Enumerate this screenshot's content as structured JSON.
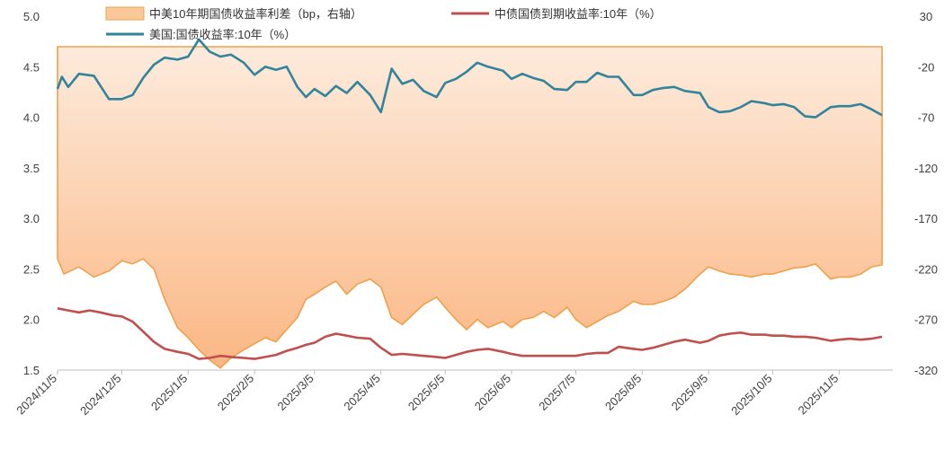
{
  "chart_data": {
    "type": "line",
    "title": "",
    "xlabel": "",
    "ylabel": "",
    "y_left": {
      "min": 1.5,
      "max": 5.0,
      "ticks": [
        "5.0",
        "4.5",
        "4.0",
        "3.5",
        "3.0",
        "2.5",
        "2.0",
        "1.5"
      ]
    },
    "y_right": {
      "min": -320,
      "max": 30,
      "ticks": [
        "30",
        "-20",
        "-70",
        "-120",
        "-170",
        "-220",
        "-270",
        "-320"
      ]
    },
    "x_ticks": [
      "2024/11/5",
      "2024/12/5",
      "2025/1/5",
      "2025/2/5",
      "2025/3/5",
      "2025/4/5",
      "2025/5/5",
      "2025/6/5",
      "2025/7/5",
      "2025/8/5",
      "2025/9/5",
      "2025/10/5",
      "2025/11/5"
    ],
    "legend_position": "top",
    "colors": {
      "spread_fill_top": "#fde8d6",
      "spread_fill_bottom": "#fbb985",
      "spread_line": "#f0a04b",
      "china": "#c0504d",
      "us": "#31849b",
      "axis": "#bfbfbf"
    },
    "series": [
      {
        "name": "中美10年期国债收益率利差（bp，右轴）",
        "axis": "right",
        "kind": "area",
        "points": [
          [
            "2024/11/5",
            -210
          ],
          [
            "2024/11/8",
            -225
          ],
          [
            "2024/11/15",
            -218
          ],
          [
            "2024/11/22",
            -228
          ],
          [
            "2024/11/29",
            -222
          ],
          [
            "2024/12/5",
            -212
          ],
          [
            "2024/12/10",
            -215
          ],
          [
            "2024/12/15",
            -210
          ],
          [
            "2024/12/20",
            -220
          ],
          [
            "2024/12/25",
            -250
          ],
          [
            "2024/12/31",
            -278
          ],
          [
            "2025/1/5",
            -288
          ],
          [
            "2025/1/10",
            -300
          ],
          [
            "2025/1/15",
            -310
          ],
          [
            "2025/1/20",
            -318
          ],
          [
            "2025/1/25",
            -308
          ],
          [
            "2025/1/31",
            -300
          ],
          [
            "2025/2/5",
            -294
          ],
          [
            "2025/2/10",
            -288
          ],
          [
            "2025/2/15",
            -292
          ],
          [
            "2025/2/20",
            -280
          ],
          [
            "2025/2/25",
            -268
          ],
          [
            "2025/3/1",
            -250
          ],
          [
            "2025/3/5",
            -245
          ],
          [
            "2025/3/10",
            -238
          ],
          [
            "2025/3/15",
            -232
          ],
          [
            "2025/3/20",
            -245
          ],
          [
            "2025/3/25",
            -235
          ],
          [
            "2025/3/31",
            -230
          ],
          [
            "2025/4/5",
            -238
          ],
          [
            "2025/4/10",
            -268
          ],
          [
            "2025/4/15",
            -275
          ],
          [
            "2025/4/20",
            -265
          ],
          [
            "2025/4/25",
            -255
          ],
          [
            "2025/5/1",
            -248
          ],
          [
            "2025/5/5",
            -258
          ],
          [
            "2025/5/10",
            -270
          ],
          [
            "2025/5/15",
            -280
          ],
          [
            "2025/5/20",
            -270
          ],
          [
            "2025/5/25",
            -278
          ],
          [
            "2025/6/1",
            -272
          ],
          [
            "2025/6/5",
            -278
          ],
          [
            "2025/6/10",
            -270
          ],
          [
            "2025/6/15",
            -268
          ],
          [
            "2025/6/20",
            -262
          ],
          [
            "2025/6/25",
            -268
          ],
          [
            "2025/7/1",
            -258
          ],
          [
            "2025/7/5",
            -270
          ],
          [
            "2025/7/10",
            -278
          ],
          [
            "2025/7/15",
            -272
          ],
          [
            "2025/7/20",
            -266
          ],
          [
            "2025/7/25",
            -262
          ],
          [
            "2025/8/1",
            -252
          ],
          [
            "2025/8/5",
            -255
          ],
          [
            "2025/8/10",
            -255
          ],
          [
            "2025/8/15",
            -252
          ],
          [
            "2025/8/20",
            -248
          ],
          [
            "2025/8/25",
            -240
          ],
          [
            "2025/9/1",
            -225
          ],
          [
            "2025/9/5",
            -218
          ],
          [
            "2025/9/10",
            -222
          ],
          [
            "2025/9/15",
            -225
          ],
          [
            "2025/9/20",
            -226
          ],
          [
            "2025/9/25",
            -228
          ],
          [
            "2025/10/1",
            -225
          ],
          [
            "2025/10/5",
            -225
          ],
          [
            "2025/10/10",
            -222
          ],
          [
            "2025/10/15",
            -219
          ],
          [
            "2025/10/20",
            -218
          ],
          [
            "2025/10/25",
            -215
          ],
          [
            "2025/11/1",
            -230
          ],
          [
            "2025/11/5",
            -228
          ],
          [
            "2025/11/10",
            -228
          ],
          [
            "2025/11/15",
            -225
          ],
          [
            "2025/11/20",
            -218
          ],
          [
            "2025/11/25",
            -216
          ]
        ]
      },
      {
        "name": "中债国债到期收益率:10年（%）",
        "axis": "left",
        "kind": "line",
        "points": [
          [
            "2024/11/5",
            2.11
          ],
          [
            "2024/11/10",
            2.09
          ],
          [
            "2024/11/15",
            2.07
          ],
          [
            "2024/11/20",
            2.09
          ],
          [
            "2024/11/25",
            2.07
          ],
          [
            "2024/12/1",
            2.04
          ],
          [
            "2024/12/5",
            2.03
          ],
          [
            "2024/12/10",
            1.98
          ],
          [
            "2024/12/15",
            1.88
          ],
          [
            "2024/12/20",
            1.78
          ],
          [
            "2024/12/25",
            1.71
          ],
          [
            "2024/12/31",
            1.68
          ],
          [
            "2025/1/5",
            1.66
          ],
          [
            "2025/1/10",
            1.61
          ],
          [
            "2025/1/15",
            1.62
          ],
          [
            "2025/1/20",
            1.64
          ],
          [
            "2025/1/25",
            1.63
          ],
          [
            "2025/1/31",
            1.62
          ],
          [
            "2025/2/5",
            1.61
          ],
          [
            "2025/2/10",
            1.63
          ],
          [
            "2025/2/15",
            1.65
          ],
          [
            "2025/2/20",
            1.69
          ],
          [
            "2025/2/25",
            1.72
          ],
          [
            "2025/3/1",
            1.75
          ],
          [
            "2025/3/5",
            1.77
          ],
          [
            "2025/3/10",
            1.83
          ],
          [
            "2025/3/15",
            1.86
          ],
          [
            "2025/3/20",
            1.84
          ],
          [
            "2025/3/25",
            1.82
          ],
          [
            "2025/3/31",
            1.81
          ],
          [
            "2025/4/5",
            1.72
          ],
          [
            "2025/4/10",
            1.65
          ],
          [
            "2025/4/15",
            1.66
          ],
          [
            "2025/4/20",
            1.65
          ],
          [
            "2025/4/25",
            1.64
          ],
          [
            "2025/5/1",
            1.63
          ],
          [
            "2025/5/5",
            1.62
          ],
          [
            "2025/5/10",
            1.65
          ],
          [
            "2025/5/15",
            1.68
          ],
          [
            "2025/5/20",
            1.7
          ],
          [
            "2025/5/25",
            1.71
          ],
          [
            "2025/6/1",
            1.68
          ],
          [
            "2025/6/5",
            1.66
          ],
          [
            "2025/6/10",
            1.64
          ],
          [
            "2025/6/15",
            1.64
          ],
          [
            "2025/6/20",
            1.64
          ],
          [
            "2025/6/25",
            1.64
          ],
          [
            "2025/7/1",
            1.64
          ],
          [
            "2025/7/5",
            1.64
          ],
          [
            "2025/7/10",
            1.66
          ],
          [
            "2025/7/15",
            1.67
          ],
          [
            "2025/7/20",
            1.67
          ],
          [
            "2025/7/25",
            1.73
          ],
          [
            "2025/8/1",
            1.71
          ],
          [
            "2025/8/5",
            1.7
          ],
          [
            "2025/8/10",
            1.72
          ],
          [
            "2025/8/15",
            1.75
          ],
          [
            "2025/8/20",
            1.78
          ],
          [
            "2025/8/25",
            1.8
          ],
          [
            "2025/9/1",
            1.77
          ],
          [
            "2025/9/5",
            1.79
          ],
          [
            "2025/9/10",
            1.84
          ],
          [
            "2025/9/15",
            1.86
          ],
          [
            "2025/9/20",
            1.87
          ],
          [
            "2025/9/25",
            1.85
          ],
          [
            "2025/10/1",
            1.85
          ],
          [
            "2025/10/5",
            1.84
          ],
          [
            "2025/10/10",
            1.84
          ],
          [
            "2025/10/15",
            1.83
          ],
          [
            "2025/10/20",
            1.83
          ],
          [
            "2025/10/25",
            1.82
          ],
          [
            "2025/11/1",
            1.79
          ],
          [
            "2025/11/5",
            1.8
          ],
          [
            "2025/11/10",
            1.81
          ],
          [
            "2025/11/15",
            1.8
          ],
          [
            "2025/11/20",
            1.81
          ],
          [
            "2025/11/25",
            1.83
          ]
        ]
      },
      {
        "name": "美国:国债收益率:10年（%）",
        "axis": "left",
        "kind": "line",
        "points": [
          [
            "2024/11/5",
            4.28
          ],
          [
            "2024/11/7",
            4.4
          ],
          [
            "2024/11/10",
            4.3
          ],
          [
            "2024/11/15",
            4.43
          ],
          [
            "2024/11/22",
            4.41
          ],
          [
            "2024/11/29",
            4.18
          ],
          [
            "2024/12/5",
            4.18
          ],
          [
            "2024/12/10",
            4.22
          ],
          [
            "2024/12/15",
            4.39
          ],
          [
            "2024/12/20",
            4.52
          ],
          [
            "2024/12/25",
            4.59
          ],
          [
            "2024/12/31",
            4.57
          ],
          [
            "2025/1/5",
            4.6
          ],
          [
            "2025/1/10",
            4.77
          ],
          [
            "2025/1/15",
            4.65
          ],
          [
            "2025/1/20",
            4.6
          ],
          [
            "2025/1/25",
            4.62
          ],
          [
            "2025/1/31",
            4.54
          ],
          [
            "2025/2/5",
            4.42
          ],
          [
            "2025/2/10",
            4.5
          ],
          [
            "2025/2/15",
            4.47
          ],
          [
            "2025/2/20",
            4.5
          ],
          [
            "2025/2/25",
            4.3
          ],
          [
            "2025/3/1",
            4.2
          ],
          [
            "2025/3/5",
            4.28
          ],
          [
            "2025/3/10",
            4.21
          ],
          [
            "2025/3/15",
            4.31
          ],
          [
            "2025/3/20",
            4.24
          ],
          [
            "2025/3/25",
            4.35
          ],
          [
            "2025/3/31",
            4.22
          ],
          [
            "2025/4/5",
            4.05
          ],
          [
            "2025/4/10",
            4.48
          ],
          [
            "2025/4/15",
            4.33
          ],
          [
            "2025/4/20",
            4.37
          ],
          [
            "2025/4/25",
            4.26
          ],
          [
            "2025/5/1",
            4.2
          ],
          [
            "2025/5/5",
            4.34
          ],
          [
            "2025/5/10",
            4.38
          ],
          [
            "2025/5/15",
            4.45
          ],
          [
            "2025/5/20",
            4.54
          ],
          [
            "2025/5/25",
            4.5
          ],
          [
            "2025/6/1",
            4.46
          ],
          [
            "2025/6/5",
            4.38
          ],
          [
            "2025/6/10",
            4.43
          ],
          [
            "2025/6/15",
            4.39
          ],
          [
            "2025/6/20",
            4.36
          ],
          [
            "2025/6/25",
            4.28
          ],
          [
            "2025/7/1",
            4.27
          ],
          [
            "2025/7/5",
            4.35
          ],
          [
            "2025/7/10",
            4.35
          ],
          [
            "2025/7/15",
            4.44
          ],
          [
            "2025/7/20",
            4.4
          ],
          [
            "2025/7/25",
            4.4
          ],
          [
            "2025/8/1",
            4.22
          ],
          [
            "2025/8/5",
            4.22
          ],
          [
            "2025/8/10",
            4.27
          ],
          [
            "2025/8/15",
            4.29
          ],
          [
            "2025/8/20",
            4.3
          ],
          [
            "2025/8/25",
            4.26
          ],
          [
            "2025/9/1",
            4.24
          ],
          [
            "2025/9/5",
            4.1
          ],
          [
            "2025/9/10",
            4.05
          ],
          [
            "2025/9/15",
            4.06
          ],
          [
            "2025/9/20",
            4.1
          ],
          [
            "2025/9/25",
            4.16
          ],
          [
            "2025/10/1",
            4.14
          ],
          [
            "2025/10/5",
            4.12
          ],
          [
            "2025/10/10",
            4.13
          ],
          [
            "2025/10/15",
            4.1
          ],
          [
            "2025/10/20",
            4.01
          ],
          [
            "2025/10/25",
            4.0
          ],
          [
            "2025/11/1",
            4.1
          ],
          [
            "2025/11/5",
            4.11
          ],
          [
            "2025/11/10",
            4.11
          ],
          [
            "2025/11/15",
            4.13
          ],
          [
            "2025/11/20",
            4.08
          ],
          [
            "2025/11/25",
            4.02
          ]
        ]
      }
    ]
  }
}
